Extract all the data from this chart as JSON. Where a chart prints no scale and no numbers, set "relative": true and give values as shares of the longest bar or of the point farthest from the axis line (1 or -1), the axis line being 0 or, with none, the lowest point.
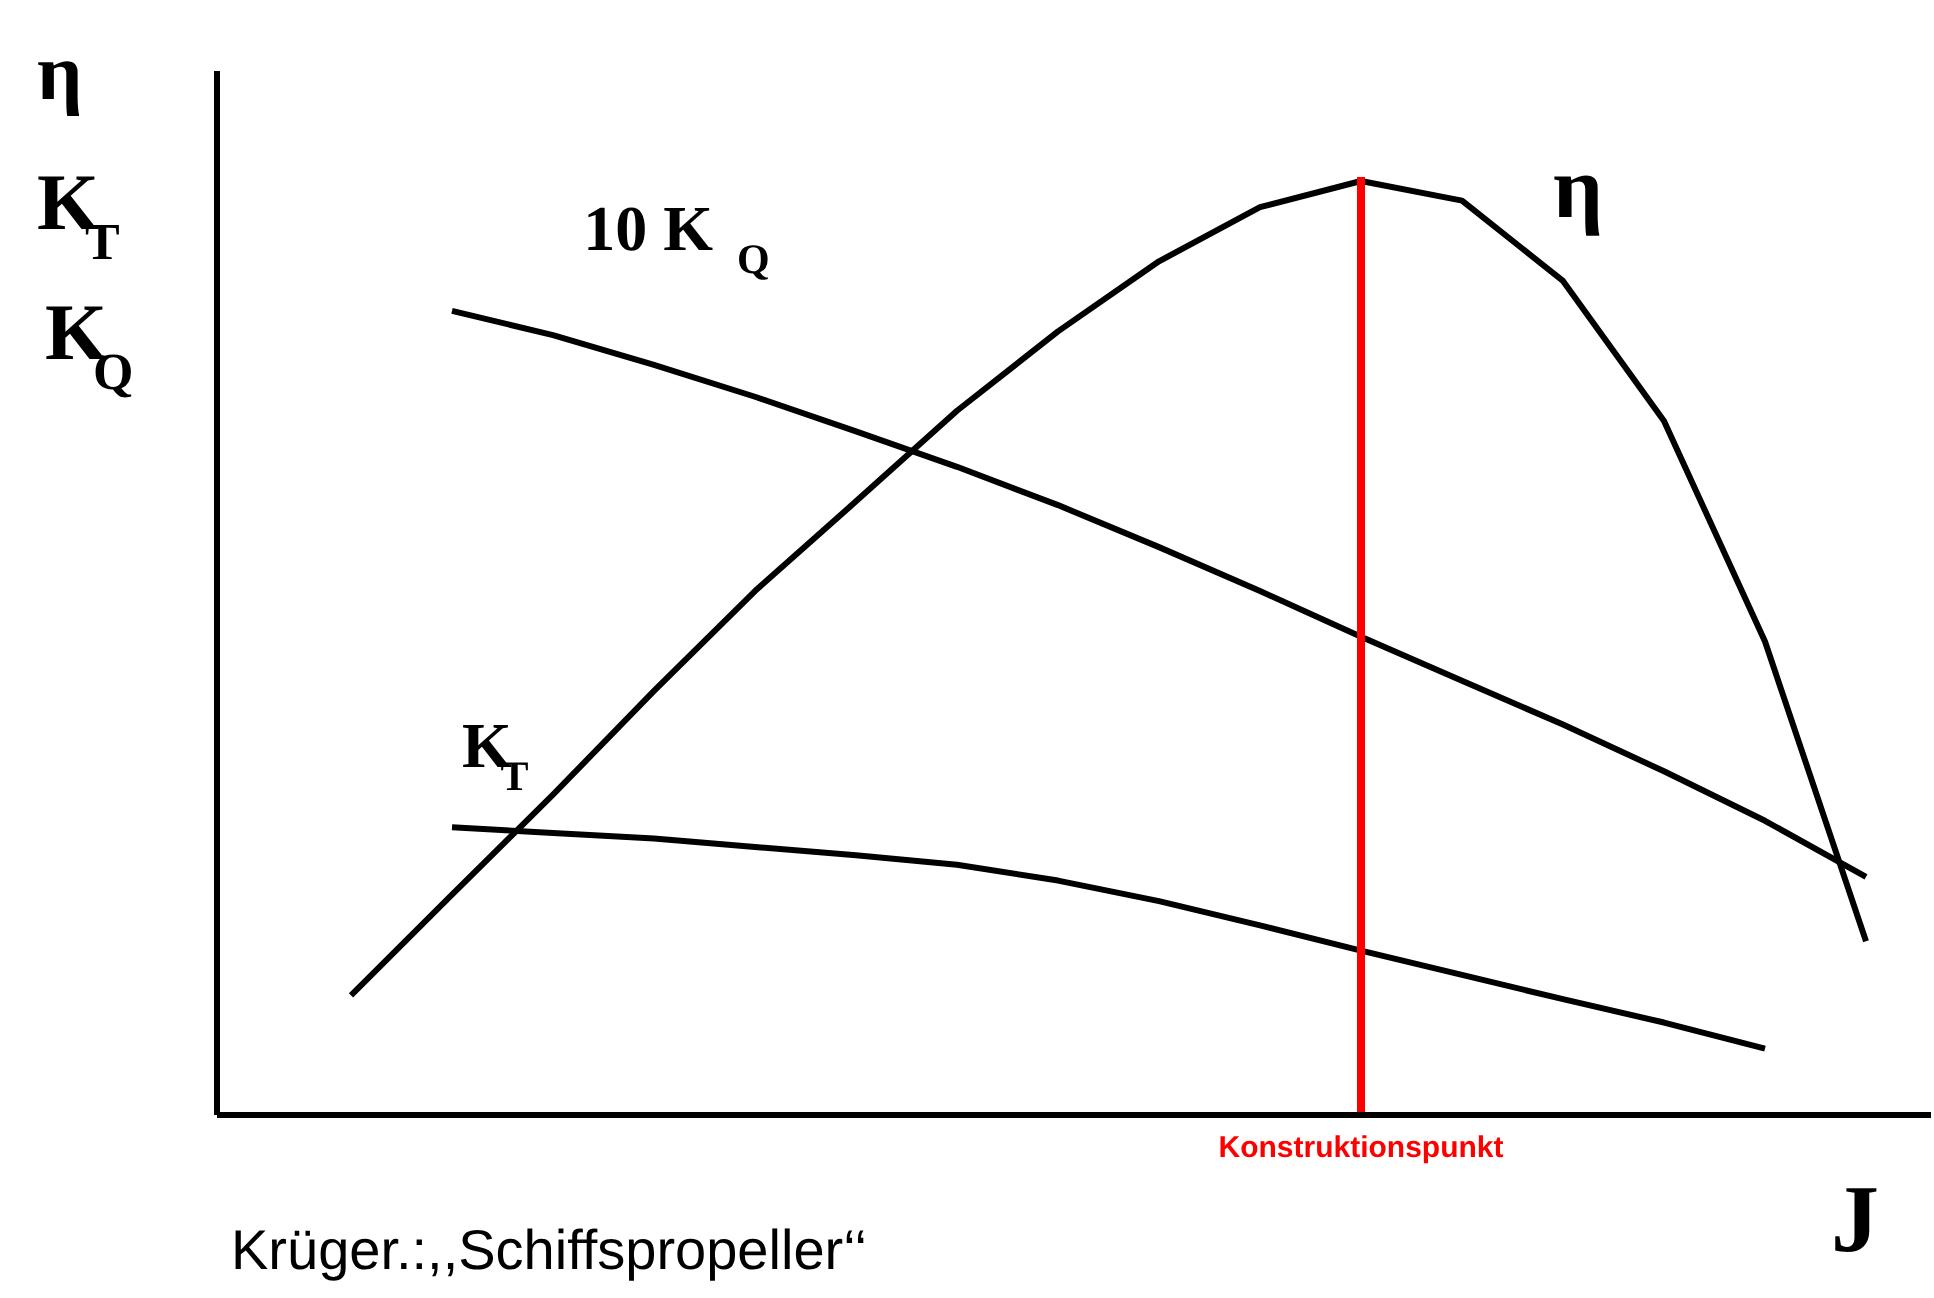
{
  "chart_data": {
    "type": "line",
    "relative": true,
    "xlabel": "J",
    "ylabel": "η\nK$_{T}$\nK$_{Q}$",
    "categories": [
      null,
      null,
      null,
      null,
      null,
      null,
      null,
      null,
      null,
      null,
      null,
      null,
      null,
      null,
      null,
      null
    ],
    "series": [
      {
        "name": "η",
        "color": "#000000",
        "values": [
          0.128,
          0.236,
          0.343,
          0.454,
          0.561,
          0.657,
          0.754,
          0.839,
          0.914,
          0.972,
          1,
          0.979,
          0.893,
          0.743,
          0.507,
          0.186
        ]
      },
      {
        "name": "10 K$_{Q}$",
        "color": "#000000",
        "values": [
          null,
          0.861,
          0.835,
          0.803,
          0.769,
          0.732,
          0.694,
          0.653,
          0.608,
          0.561,
          0.512,
          0.465,
          0.418,
          0.368,
          0.315,
          0.255
        ]
      },
      {
        "name": "K$_{T}$",
        "color": "#000000",
        "values": [
          null,
          0.308,
          0.302,
          0.296,
          0.287,
          0.278,
          0.268,
          0.251,
          0.229,
          0.203,
          0.176,
          0.15,
          0.124,
          0.099,
          0.071,
          null
        ]
      }
    ],
    "annotations": [
      "Konstruktionspunkt",
      "Krüger.:,,Schiffspropeller‘‘"
    ],
    "grid": false
  }
}
